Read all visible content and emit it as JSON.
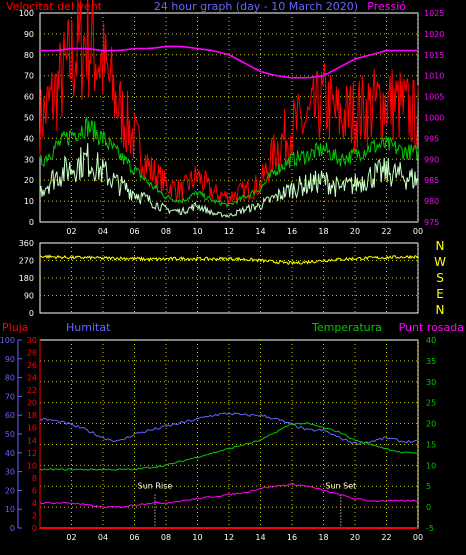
{
  "colors": {
    "background": "#000000",
    "plot_bg": "#000000",
    "grid": "#c8c800",
    "axis": "#ffffff",
    "red": "#ff0000",
    "green": "#00c800",
    "pale_green": "#c8ffc8",
    "magenta": "#ff00ff",
    "blue": "#6464ff",
    "yellow": "#ffff00",
    "tick_text": "#ffffff",
    "direction_letters": "#ffff00"
  },
  "chart_data": [
    {
      "type": "line",
      "title": "24 hour graph (day - 10 March 2020)",
      "left_label": "Velocitat del vent",
      "right_label": "Pressió",
      "x_ticks": [
        "02",
        "04",
        "06",
        "08",
        "10",
        "12",
        "14",
        "16",
        "18",
        "20",
        "22",
        "00"
      ],
      "x": [
        0,
        1,
        2,
        3,
        4,
        5,
        6,
        7,
        8,
        9,
        10,
        11,
        12,
        13,
        14,
        15,
        16,
        17,
        18,
        19,
        20,
        21,
        22,
        23,
        24
      ],
      "ylim_left": [
        0,
        100
      ],
      "yticks_left": [
        0,
        10,
        20,
        30,
        40,
        50,
        60,
        70,
        80,
        90,
        100
      ],
      "ylim_right": [
        975,
        1025
      ],
      "yticks_right": [
        975,
        980,
        985,
        990,
        995,
        1000,
        1005,
        1010,
        1015,
        1020,
        1025
      ],
      "grid": true,
      "series": [
        {
          "color": "red",
          "axis": "left",
          "values": [
            48,
            62,
            78,
            88,
            75,
            55,
            40,
            25,
            18,
            15,
            22,
            14,
            12,
            15,
            18,
            35,
            45,
            48,
            58,
            50,
            52,
            55,
            58,
            55,
            50
          ]
        },
        {
          "color": "green",
          "axis": "left",
          "values": [
            28,
            36,
            42,
            46,
            40,
            32,
            25,
            18,
            12,
            10,
            14,
            10,
            8,
            12,
            16,
            25,
            30,
            32,
            35,
            30,
            32,
            36,
            37,
            34,
            33
          ]
        },
        {
          "color": "pale_green",
          "axis": "left",
          "values": [
            15,
            22,
            26,
            30,
            24,
            18,
            14,
            10,
            6,
            5,
            8,
            4,
            3,
            6,
            8,
            12,
            16,
            18,
            20,
            16,
            18,
            22,
            24,
            22,
            20
          ]
        },
        {
          "color": "magenta",
          "axis": "right",
          "values": [
            1016,
            1016,
            1016.5,
            1016.5,
            1016,
            1016,
            1016.5,
            1016.5,
            1017,
            1017,
            1016.5,
            1016,
            1015,
            1013,
            1011,
            1010,
            1009.5,
            1009.5,
            1010,
            1012,
            1014,
            1015,
            1016,
            1016,
            1016
          ]
        }
      ]
    },
    {
      "type": "line",
      "title": "",
      "ylim": [
        0,
        360
      ],
      "yticks": [
        0,
        90,
        180,
        270,
        360
      ],
      "direction_letters": [
        "N",
        "W",
        "S",
        "E",
        "N"
      ],
      "grid": true,
      "series": [
        {
          "color": "yellow",
          "values": [
            292,
            288,
            285,
            285,
            282,
            282,
            280,
            276,
            278,
            280,
            279,
            278,
            280,
            276,
            270,
            262,
            256,
            262,
            270,
            276,
            280,
            283,
            286,
            288,
            290
          ]
        }
      ]
    },
    {
      "type": "line",
      "left_label_1": "Pluja",
      "left_label_2": "Humitat",
      "right_label_1": "Temperatura",
      "right_label_2": "Punt rosada",
      "x_ticks": [
        "02",
        "04",
        "06",
        "08",
        "10",
        "12",
        "14",
        "16",
        "18",
        "20",
        "22",
        "00"
      ],
      "x": [
        0,
        1,
        2,
        3,
        4,
        5,
        6,
        7,
        8,
        9,
        10,
        11,
        12,
        13,
        14,
        15,
        16,
        17,
        18,
        19,
        20,
        21,
        22,
        23,
        24
      ],
      "ylim_humidity": [
        0,
        100
      ],
      "yticks_humidity": [
        0,
        10,
        20,
        30,
        40,
        50,
        60,
        70,
        80,
        90,
        100
      ],
      "ylim_rain": [
        0,
        30
      ],
      "yticks_rain": [
        0,
        2,
        4,
        6,
        8,
        10,
        12,
        14,
        16,
        18,
        20,
        22,
        24,
        26,
        28,
        30
      ],
      "ylim_temp": [
        -5,
        40
      ],
      "yticks_temp": [
        -5,
        0,
        5,
        10,
        15,
        20,
        25,
        30,
        35,
        40
      ],
      "annotations": [
        {
          "label": "Sun Rise",
          "x": 7.3
        },
        {
          "label": "Sun Set",
          "x": 19.1
        }
      ],
      "grid": true,
      "series": [
        {
          "color": "blue",
          "axis": "humidity",
          "values": [
            58,
            57,
            55,
            52,
            48,
            46,
            50,
            52,
            54,
            56,
            58,
            60,
            61,
            60,
            60,
            58,
            55,
            52,
            52,
            48,
            45,
            46,
            48,
            46,
            46
          ]
        },
        {
          "color": "green",
          "axis": "temp",
          "values": [
            9,
            9,
            9,
            9,
            9,
            9,
            9,
            9.5,
            10,
            11,
            12,
            13,
            14,
            15,
            16,
            18,
            20,
            20,
            19,
            18,
            16,
            15,
            14,
            13,
            13
          ]
        },
        {
          "color": "magenta",
          "axis": "temp",
          "values": [
            1,
            1,
            1,
            0.5,
            0,
            0,
            0.5,
            1,
            1,
            1.5,
            2,
            2.5,
            3,
            3.5,
            4.5,
            5,
            5.5,
            5,
            4,
            3,
            2,
            1.5,
            1.5,
            1.5,
            1.5
          ]
        },
        {
          "color": "red",
          "axis": "rain",
          "values": [
            0,
            0,
            0,
            0,
            0,
            0,
            0,
            0,
            0,
            0,
            0,
            0,
            0,
            0,
            0,
            0,
            0,
            0,
            0,
            0,
            0,
            0,
            0,
            0,
            0
          ]
        }
      ]
    }
  ]
}
